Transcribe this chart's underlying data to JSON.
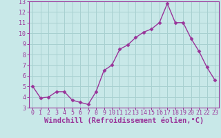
{
  "x": [
    0,
    1,
    2,
    3,
    4,
    5,
    6,
    7,
    8,
    9,
    10,
    11,
    12,
    13,
    14,
    15,
    16,
    17,
    18,
    19,
    20,
    21,
    22,
    23
  ],
  "y": [
    5.0,
    3.9,
    4.0,
    4.5,
    4.5,
    3.7,
    3.5,
    3.3,
    4.5,
    6.5,
    7.0,
    8.5,
    8.9,
    9.6,
    10.1,
    10.4,
    11.0,
    12.8,
    11.0,
    11.0,
    9.5,
    8.3,
    6.8,
    5.6
  ],
  "line_color": "#993399",
  "marker": "D",
  "marker_size": 2.5,
  "bg_color": "#c8e8e8",
  "grid_color": "#a8d0d0",
  "xlabel": "Windchill (Refroidissement éolien,°C)",
  "xlim": [
    -0.5,
    23.5
  ],
  "ylim": [
    3,
    13
  ],
  "yticks": [
    3,
    4,
    5,
    6,
    7,
    8,
    9,
    10,
    11,
    12,
    13
  ],
  "xticks": [
    0,
    1,
    2,
    3,
    4,
    5,
    6,
    7,
    8,
    9,
    10,
    11,
    12,
    13,
    14,
    15,
    16,
    17,
    18,
    19,
    20,
    21,
    22,
    23
  ],
  "tick_label_fontsize": 6,
  "xlabel_fontsize": 7.5,
  "line_width": 1.0
}
